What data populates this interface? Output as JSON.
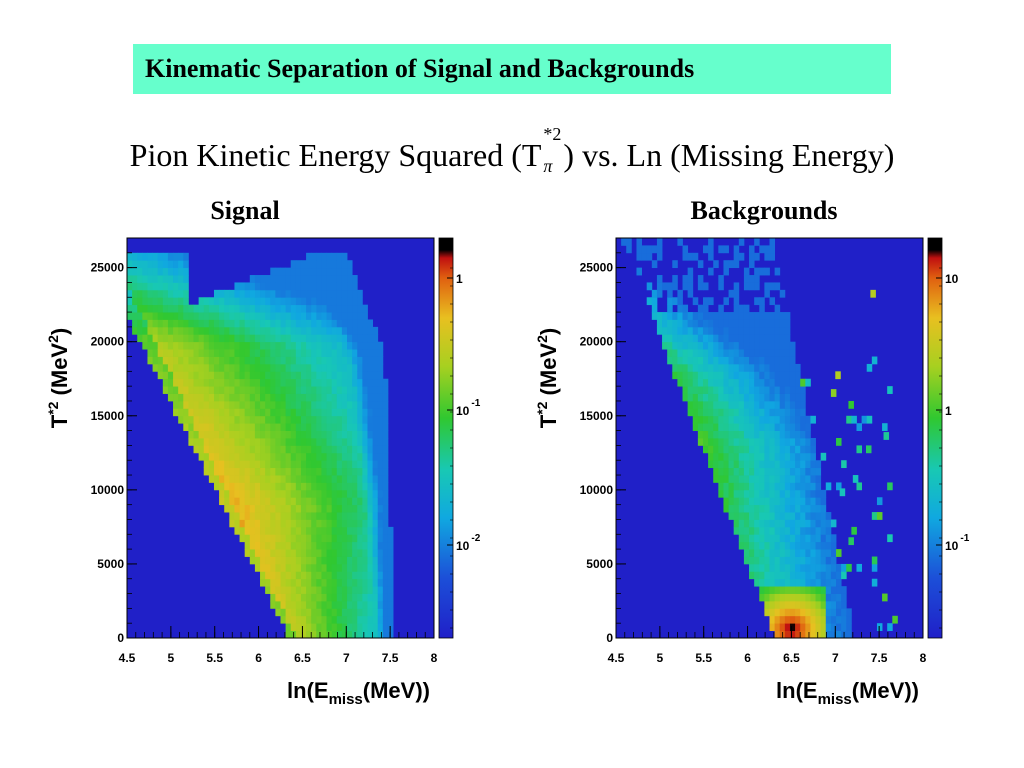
{
  "slide": {
    "title": "Kinematic Separation of Signal and Backgrounds",
    "subtitle_pre": "Pion Kinetic Energy Squared (T",
    "subtitle_sup": "*2",
    "subtitle_sub": "π",
    "subtitle_post": ") vs. Ln (Missing Energy)"
  },
  "chart_data": [
    {
      "type": "heatmap",
      "title": "Signal",
      "xlabel": "ln(Emiss(MeV))",
      "xlabel_main": "ln(E",
      "xlabel_sub": "miss",
      "xlabel_end": "(MeV))",
      "ylabel": "T*2 (MeV2)",
      "xlim": [
        4.5,
        8
      ],
      "ylim": [
        0,
        27000
      ],
      "x_ticks": [
        "4.5",
        "5",
        "5.5",
        "6",
        "6.5",
        "7",
        "7.5",
        "8"
      ],
      "y_ticks": [
        "0",
        "5000",
        "10000",
        "15000",
        "20000",
        "25000"
      ],
      "colorbar": {
        "scale": "log",
        "range": [
          0.003,
          3
        ],
        "labels": [
          {
            "base": "1",
            "exp": ""
          },
          {
            "base": "10",
            "exp": "-1"
          },
          {
            "base": "10",
            "exp": "-2"
          }
        ]
      },
      "grid": false
    },
    {
      "type": "heatmap",
      "title": "Backgrounds",
      "xlabel": "ln(Emiss(MeV))",
      "xlabel_main": "ln(E",
      "xlabel_sub": "miss",
      "xlabel_end": "(MeV))",
      "ylabel": "T*2 (MeV2)",
      "xlim": [
        4.5,
        8
      ],
      "ylim": [
        0,
        27000
      ],
      "x_ticks": [
        "4.5",
        "5",
        "5.5",
        "6",
        "6.5",
        "7",
        "7.5",
        "8"
      ],
      "y_ticks": [
        "0",
        "5000",
        "10000",
        "15000",
        "20000",
        "25000"
      ],
      "colorbar": {
        "scale": "log",
        "range": [
          0.03,
          30
        ],
        "labels": [
          {
            "base": "10",
            "exp": ""
          },
          {
            "base": "1",
            "exp": ""
          },
          {
            "base": "10",
            "exp": "-1"
          }
        ]
      },
      "grid": false
    }
  ]
}
